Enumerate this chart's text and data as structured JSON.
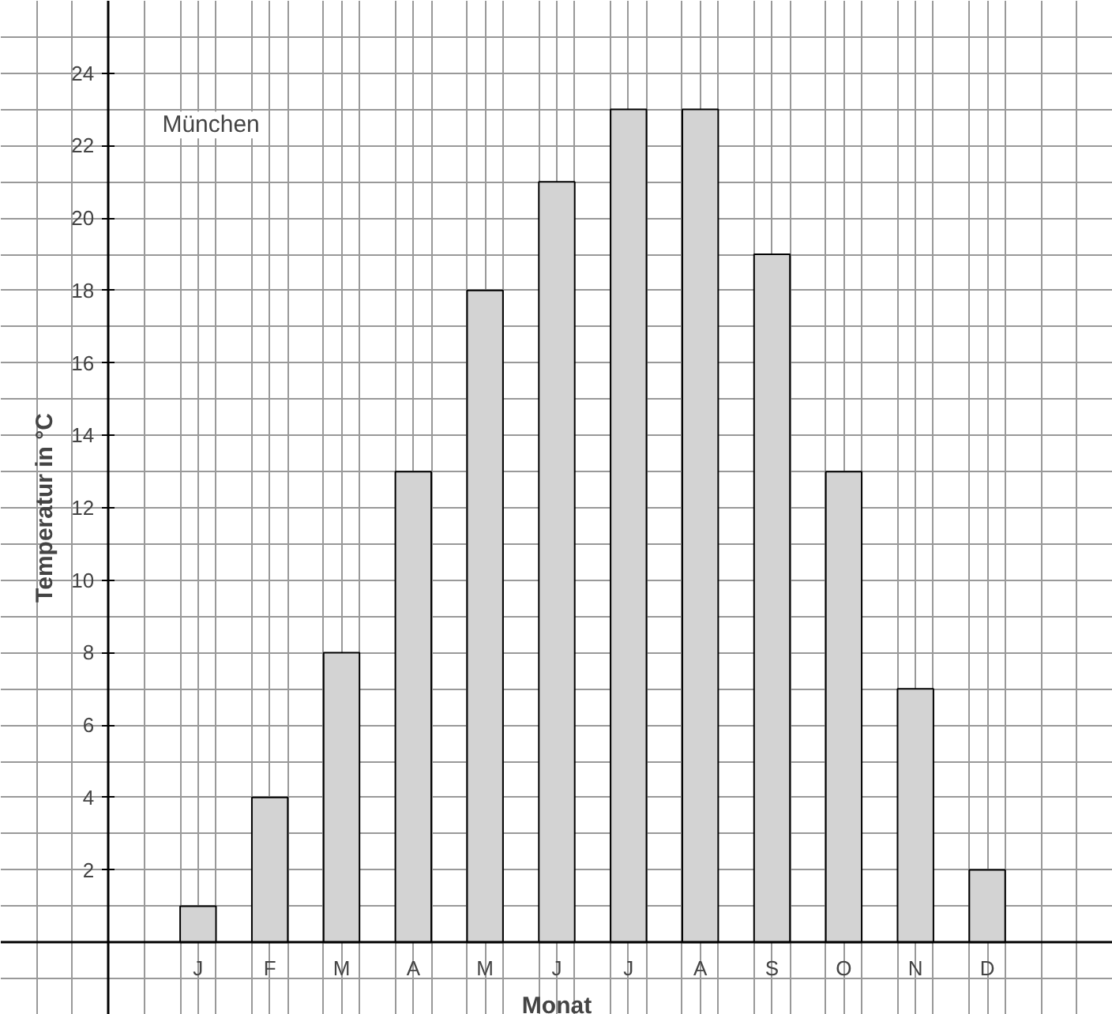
{
  "chart_data": {
    "type": "bar",
    "xlabel": "Monat",
    "ylabel": "Temperatur in °C",
    "annotations": [
      "München"
    ],
    "categories": [
      "J",
      "F",
      "M",
      "A",
      "M",
      "J",
      "J",
      "A",
      "S",
      "O",
      "N",
      "D"
    ],
    "values": [
      1,
      4,
      8,
      13,
      18,
      21,
      23,
      23,
      19,
      13,
      7,
      2
    ],
    "color": "#d3d3d3",
    "ylim": [
      -2,
      26
    ],
    "yticks": [
      2,
      4,
      6,
      8,
      10,
      12,
      14,
      16,
      18,
      20,
      22,
      24
    ],
    "grid": true
  }
}
